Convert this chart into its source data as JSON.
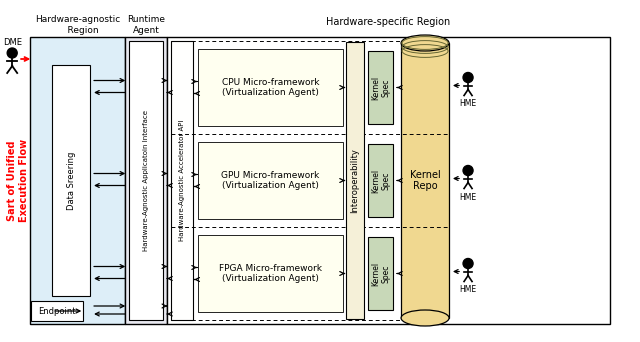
{
  "bg_color": "#ffffff",
  "ha_region_color": "#ddeef8",
  "runtime_color": "#e8e8f0",
  "micro_box_color": "#fffff0",
  "kernel_spec_color": "#c8d8b8",
  "kernel_repo_color": "#f0d890",
  "interop_color": "#e8e8e0",
  "labels": {
    "ha_region": "Hardware-agnostic\n    Region",
    "runtime": "Runtime\nAgent",
    "hw_specific": "Hardware-specific Region",
    "left_flow": "Sart of Unified\nExecution Flow",
    "dme": "DME",
    "endpoint": "Endpoint",
    "data_steering": "Data Sreering",
    "ha_interface": "Hardware-Agnostic Applicatoin Interface",
    "ha_api": "Hardware-Agnostic Accelerator API",
    "interop": "Interoperability",
    "cpu": "CPU Micro-framework\n(Virtualization Agent)",
    "gpu": "GPU Micro-framework\n(Virtualization Agent)",
    "fpga": "FPGA Micro-framework\n(Virtualization Agent)",
    "kernel_spec": "Kernel\nSpec",
    "kernel_repo": "Kernel\nRepo",
    "hme": "HME"
  }
}
